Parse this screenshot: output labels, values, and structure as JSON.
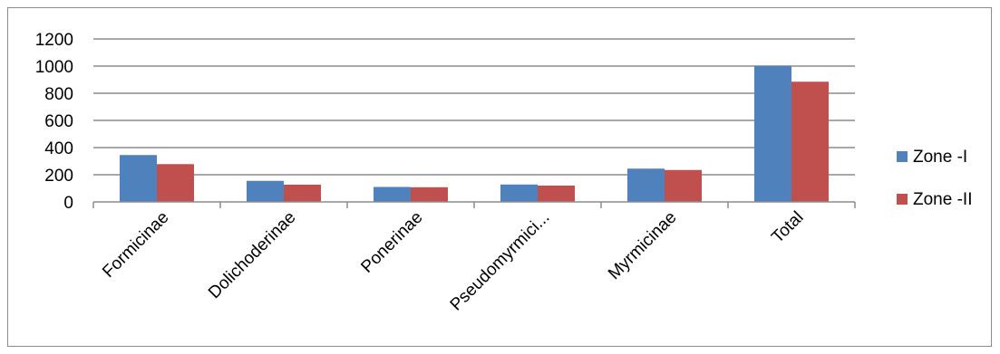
{
  "chart_data": {
    "type": "bar",
    "categories": [
      "Formicinae",
      "Dolichoderinae",
      "Ponerinae",
      "Pseudomyrmici...",
      "Myrmicinae",
      "Total"
    ],
    "series": [
      {
        "name": "Zone -I",
        "values": [
          345,
          155,
          110,
          128,
          245,
          1003
        ],
        "color": "#4f81bd"
      },
      {
        "name": "Zone -II",
        "values": [
          278,
          127,
          108,
          120,
          235,
          885
        ],
        "color": "#c0504d"
      }
    ],
    "title": "",
    "xlabel": "",
    "ylabel": "",
    "ylim": [
      0,
      1200
    ],
    "yticks": [
      0,
      200,
      400,
      600,
      800,
      1000,
      1200
    ],
    "grid": true,
    "legend_position": "right"
  }
}
